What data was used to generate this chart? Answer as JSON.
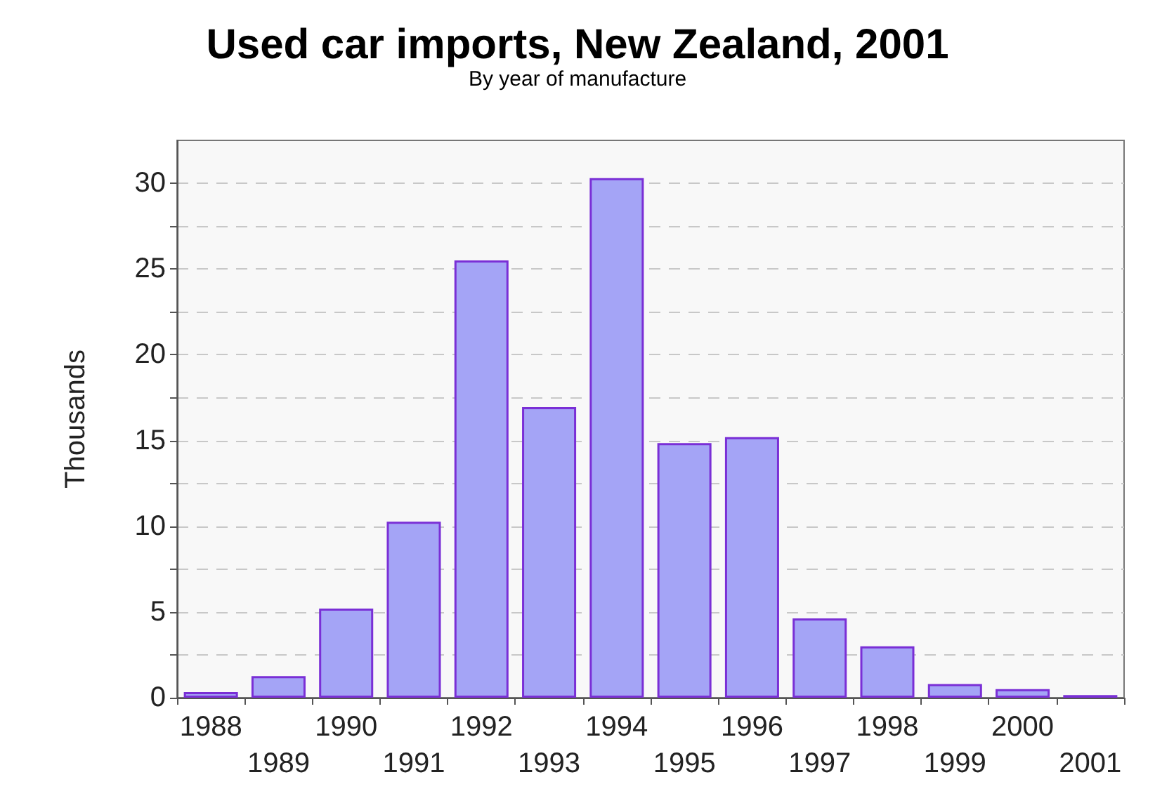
{
  "chart_data": {
    "type": "bar",
    "title": "Used car imports, New Zealand, 2001",
    "subtitle": "By year of manufacture",
    "ylabel": "Thousands",
    "categories": [
      "1988",
      "1989",
      "1990",
      "1991",
      "1992",
      "1993",
      "1994",
      "1995",
      "1996",
      "1997",
      "1998",
      "1999",
      "2000",
      "2001"
    ],
    "values": [
      0.33,
      1.26,
      5.2,
      10.26,
      25.5,
      16.95,
      30.3,
      14.85,
      15.2,
      4.63,
      3.0,
      0.8,
      0.5,
      0.15
    ],
    "color": "#a4a4f6",
    "ylim": [
      0,
      32.5
    ],
    "yticks": [
      0,
      {
        "value": 2.5,
        "label": null
      },
      5,
      {
        "value": 7.5,
        "label": null
      },
      10,
      {
        "value": 12.5,
        "label": null
      },
      15,
      {
        "value": 17.5,
        "label": null
      },
      20,
      {
        "value": 22.5,
        "label": null
      },
      25,
      {
        "value": 27.5,
        "label": null
      },
      30
    ],
    "grid": "y"
  }
}
